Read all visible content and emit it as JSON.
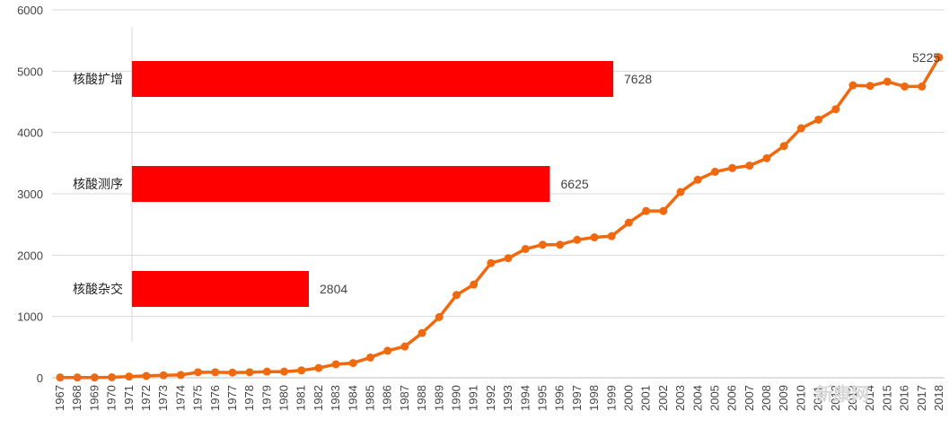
{
  "chart_data": [
    {
      "type": "line",
      "title": "",
      "xlabel": "",
      "ylabel": "",
      "ylim": [
        0,
        6000
      ],
      "yticks": [
        0,
        1000,
        2000,
        3000,
        4000,
        5000,
        6000
      ],
      "grid": true,
      "color": "#F0690F",
      "end_label": "5225",
      "x": [
        "1967",
        "1968",
        "1969",
        "1970",
        "1971",
        "1972",
        "1973",
        "1974",
        "1975",
        "1976",
        "1977",
        "1978",
        "1979",
        "1980",
        "1981",
        "1982",
        "1983",
        "1984",
        "1985",
        "1986",
        "1987",
        "1988",
        "1989",
        "1990",
        "1991",
        "1992",
        "1993",
        "1994",
        "1995",
        "1996",
        "1997",
        "1998",
        "1999",
        "2000",
        "2001",
        "2002",
        "2003",
        "2004",
        "2005",
        "2006",
        "2007",
        "2008",
        "2009",
        "2010",
        "2011",
        "2012",
        "2013",
        "2014",
        "2015",
        "2016",
        "2017",
        "2018"
      ],
      "values": [
        5,
        5,
        5,
        8,
        20,
        30,
        40,
        45,
        90,
        90,
        85,
        90,
        100,
        100,
        120,
        160,
        220,
        240,
        330,
        440,
        510,
        730,
        990,
        1350,
        1520,
        1870,
        1950,
        2100,
        2170,
        2170,
        2250,
        2290,
        2310,
        2530,
        2720,
        2720,
        3030,
        3230,
        3360,
        3420,
        3460,
        3580,
        3780,
        4070,
        4210,
        4380,
        4770,
        4760,
        4830,
        4750,
        4750,
        5225
      ]
    },
    {
      "type": "bar",
      "orientation": "horizontal",
      "color": "#FF0000",
      "categories": [
        "核酸扩增",
        "核酸测序",
        "核酸杂交"
      ],
      "values": [
        7628,
        6625,
        2804
      ]
    }
  ],
  "watermark": "新康网"
}
